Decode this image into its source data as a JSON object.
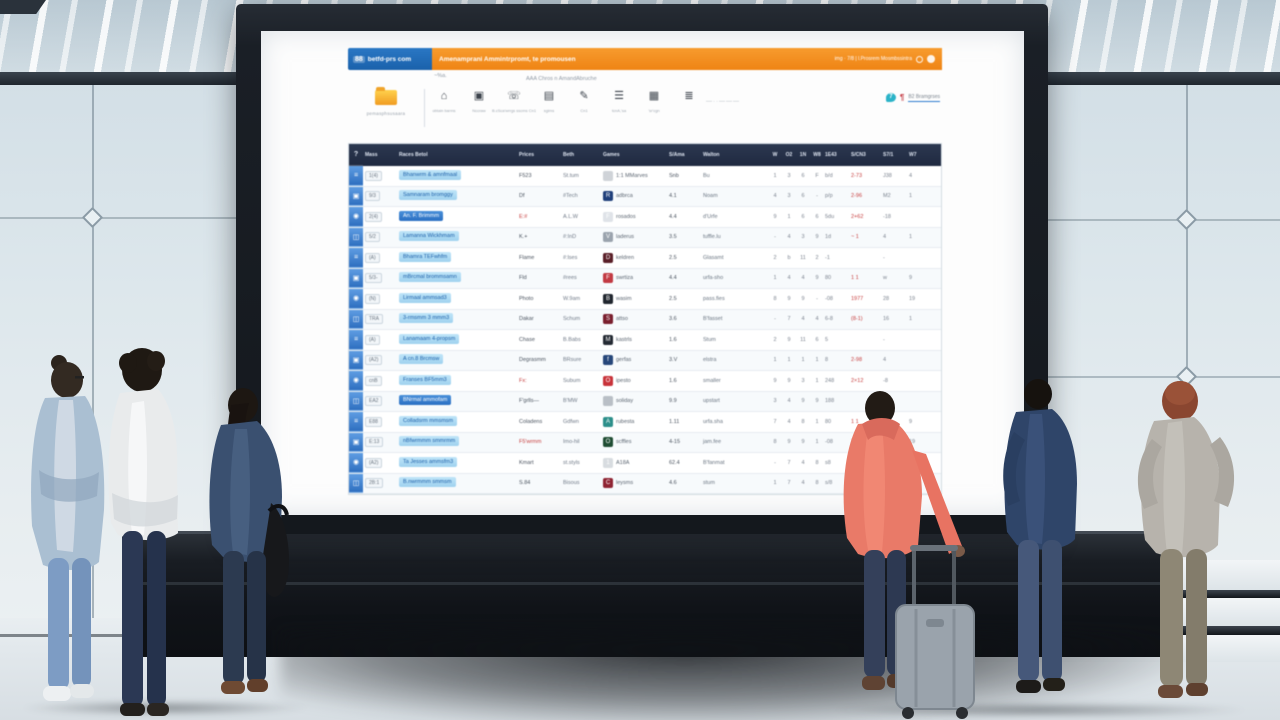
{
  "colors": {
    "banner_orange": "#ef8414",
    "logo_blue": "#1a61ab",
    "table_header_navy": "#232d45",
    "highlight_blue": "#a8d8f2",
    "selected_blue": "#2f7cd0",
    "alert_red": "#c63b3b"
  },
  "screen": {
    "logo": {
      "icon": "88",
      "text": "betfd-prs com"
    },
    "banner": {
      "left_text": "Amenamprani  Ammintrpromt, te promousen",
      "right_text": "img · 7/8 | l.Prosrem Mosmbssintra"
    },
    "subnav": {
      "left": "~%a.",
      "center": "AAA Chros n AmandAbruche"
    },
    "toolbar": {
      "home_label": "pemasphsusaara",
      "items": [
        {
          "id": "browse",
          "glyph": "⌂",
          "label": "obtain barms"
        },
        {
          "id": "refresh",
          "glyph": "▣",
          "label": "Nccraw"
        },
        {
          "id": "phone",
          "glyph": "☏",
          "label": "B.cSca'wrrgs sscms  Cn1"
        },
        {
          "id": "stats",
          "glyph": "▤",
          "label": "sgims"
        },
        {
          "id": "edit",
          "glyph": "✎",
          "label": "Cn1"
        },
        {
          "id": "list",
          "glyph": "☰",
          "label": "tcnA,'sa"
        },
        {
          "id": "grid",
          "glyph": "▦",
          "label": "'sr'cgn"
        },
        {
          "id": "card",
          "glyph": "≣",
          "label": ""
        }
      ],
      "dash": "—··———",
      "partners": {
        "teal": "7",
        "red": "¶",
        "grey": "B2 Bramgrses"
      }
    },
    "table": {
      "headers": [
        "?",
        "Mass",
        "Races Betol",
        "Prices",
        "Beth",
        "Games",
        "S/Ama",
        "Walton",
        "W",
        "O2",
        "1N",
        "W8",
        "1E43",
        "S/CN3",
        "S7/1",
        "W7"
      ],
      "rows": [
        {
          "icon": "≡",
          "num": "1(4)",
          "name": "Bhanwrm & amnfmaal",
          "sel": false,
          "code": "F523",
          "red": false,
          "time": "St.tum",
          "tcolor": "#cfd3d8",
          "tletter": "",
          "team": "1:1 MMarves",
          "val": "Snb",
          "word": "Bu",
          "c": [
            "1",
            "3",
            "6",
            "F"
          ],
          "n3": "b/d",
          "odds": "2-73",
          "n4": "J38",
          "n5": "4"
        },
        {
          "icon": "▣",
          "num": "9/3",
          "name": "Samnaram bromggy",
          "sel": false,
          "code": "Df",
          "red": false,
          "time": "#Tech",
          "tcolor": "#1f3f7a",
          "tletter": "R",
          "team": "adbrca",
          "val": "4.1",
          "word": "Noam",
          "c": [
            "4",
            "3",
            "6",
            "-"
          ],
          "n3": "p/p",
          "odds": "2-96",
          "n4": "M2",
          "n5": "1"
        },
        {
          "icon": "◉",
          "num": "2(4)",
          "name": "An. F. Brimmm",
          "sel": true,
          "code": "E:#",
          "red": true,
          "time": "A.L.W",
          "tcolor": "#dfe3e8",
          "tletter": "F",
          "team": "rosados",
          "val": "4.4",
          "word": "d'Urfe",
          "c": [
            "9",
            "1",
            "6",
            "6"
          ],
          "n3": "5du",
          "odds": "2+62",
          "n4": "-18",
          "n5": ""
        },
        {
          "icon": "◫",
          "num": "5/2",
          "name": "Lamanna Wickhmam",
          "sel": false,
          "code": "K.+",
          "red": false,
          "time": "#:InD",
          "tcolor": "#9aa3ad",
          "tletter": "V",
          "team": "laderus",
          "val": "3.5",
          "word": "tuffle.lu",
          "c": [
            "-",
            "4",
            "3",
            "9"
          ],
          "n3": "1d",
          "odds": "~ 1",
          "n4": "4",
          "n5": "1"
        },
        {
          "icon": "≡",
          "num": "(A)",
          "name": "Bhamra TEFwhfm",
          "sel": false,
          "code": "Flame",
          "red": false,
          "time": "#:lses",
          "tcolor": "#5a1f28",
          "tletter": "D",
          "team": "keldren",
          "val": "2.5",
          "word": "Glasamt",
          "c": [
            "2",
            "b",
            "11",
            "2"
          ],
          "n3": "-1",
          "odds": "",
          "n4": "-",
          "n5": ""
        },
        {
          "icon": "▣",
          "num": "5/3-",
          "name": "mBrcmal brommsamn",
          "sel": false,
          "code": "Fld",
          "red": false,
          "time": "#rees",
          "tcolor": "#c23a43",
          "tletter": "F",
          "team": "swrtiza",
          "val": "4.4",
          "word": "urfa-sho",
          "c": [
            "1",
            "4",
            "4",
            "9"
          ],
          "n3": "80",
          "odds": "1 1",
          "n4": "w",
          "n5": "9"
        },
        {
          "icon": "◉",
          "num": "(N)",
          "name": "Lirmaal ammsad3",
          "sel": false,
          "code": "Photo",
          "red": false,
          "time": "W.9am",
          "tcolor": "#20262e",
          "tletter": "B",
          "team": "wasim",
          "val": "2.5",
          "word": "pass.fies",
          "c": [
            "8",
            "9",
            "9",
            "-"
          ],
          "n3": "-08",
          "odds": "1977",
          "n4": "28",
          "n5": "19"
        },
        {
          "icon": "◫",
          "num": "TRA",
          "name": "3-rmsmm 3 mmm3",
          "sel": false,
          "code": "Dakar",
          "red": false,
          "time": "Schum",
          "tcolor": "#7a1f2e",
          "tletter": "S",
          "team": "attso",
          "val": "3.6",
          "word": "B'fasset",
          "c": [
            "-",
            "7",
            "4",
            "4"
          ],
          "n3": "6-8",
          "odds": "(8-1)",
          "n4": "16",
          "n5": "1"
        },
        {
          "icon": "≡",
          "num": "(A)",
          "name": "Lanamaam 4-propsm",
          "sel": false,
          "code": "Chase",
          "red": false,
          "time": "B.Babs",
          "tcolor": "#242a33",
          "tletter": "M",
          "team": "kastrls",
          "val": "1.6",
          "word": "Stum",
          "c": [
            "2",
            "9",
            "11",
            "6"
          ],
          "n3": "5",
          "odds": "",
          "n4": "-",
          "n5": ""
        },
        {
          "icon": "▣",
          "num": "(A2)",
          "name": "A cn.8 Brcmsw",
          "sel": false,
          "code": "Degrasmm",
          "red": false,
          "time": "BRsure",
          "tcolor": "#27477a",
          "tletter": "f",
          "team": "gerfas",
          "val": "3.V",
          "word": "elstra",
          "c": [
            "1",
            "1",
            "1",
            "1"
          ],
          "n3": "8",
          "odds": "2-98",
          "n4": "4",
          "n5": ""
        },
        {
          "icon": "◉",
          "num": "cnB",
          "name": "Franses BF5mm3",
          "sel": false,
          "code": "Fx:",
          "red": true,
          "time": "Subum",
          "tcolor": "#c8333a",
          "tletter": "O",
          "team": "ipesto",
          "val": "1.6",
          "word": "smaller",
          "c": [
            "9",
            "9",
            "3",
            "1"
          ],
          "n3": "248",
          "odds": "2×12",
          "n4": "-8",
          "n5": ""
        },
        {
          "icon": "◫",
          "num": "EA2",
          "name": "BNrmal ammofam",
          "sel": true,
          "code": "F'grlls—",
          "red": false,
          "time": "B'MW",
          "tcolor": "#b9bfc6",
          "tletter": "",
          "team": "soliday",
          "val": "9.9",
          "word": "upstart",
          "c": [
            "3",
            "4",
            "9",
            "9"
          ],
          "n3": "188",
          "odds": "",
          "n4": "-",
          "n5": ""
        },
        {
          "icon": "≡",
          "num": "E88",
          "name": "Colladsrm mmsmsm",
          "sel": false,
          "code": "Coladens",
          "red": false,
          "time": "Gdfwn",
          "tcolor": "#2d8f8a",
          "tletter": "A",
          "team": "rubesta",
          "val": "1.11",
          "word": "urfa.sha",
          "c": [
            "7",
            "4",
            "8",
            "1"
          ],
          "n3": "80",
          "odds": "1 1",
          "n4": "w",
          "n5": "9"
        },
        {
          "icon": "▣",
          "num": "E:13",
          "name": "nBfwrmmm smmrmm",
          "sel": false,
          "code": "F5'wrmm",
          "red": true,
          "time": "Imo-hil",
          "tcolor": "#1f4d33",
          "tletter": "O",
          "team": "scffles",
          "val": "4-15",
          "word": "jam.fee",
          "c": [
            "8",
            "9",
            "9",
            "1"
          ],
          "n3": "-08",
          "odds": "79/3",
          "n4": "28",
          "n5": "19"
        },
        {
          "icon": "◉",
          "num": "(A2)",
          "name": "Ta Jesses ammsfm3",
          "sel": false,
          "code": "Kmart",
          "red": false,
          "time": "st.styls",
          "tcolor": "#d8dce0",
          "tletter": "1",
          "team": "A18A",
          "val": "62.4",
          "word": "B'fanmat",
          "c": [
            "-",
            "7",
            "4",
            "8"
          ],
          "n3": "s8",
          "odds": "(A-f1)",
          "n4": "16",
          "n5": "1"
        },
        {
          "icon": "◫",
          "num": "2B:1",
          "name": "B.nwrmmm smmsm",
          "sel": false,
          "code": "S.84",
          "red": false,
          "time": "Bisous",
          "tcolor": "#8f2433",
          "tletter": "C",
          "team": "leysms",
          "val": "4.6",
          "word": "stum",
          "c": [
            "1",
            "7",
            "4",
            "8"
          ],
          "n3": "s/8",
          "odds": "8-01",
          "n4": "18",
          "n5": "1"
        }
      ]
    }
  }
}
